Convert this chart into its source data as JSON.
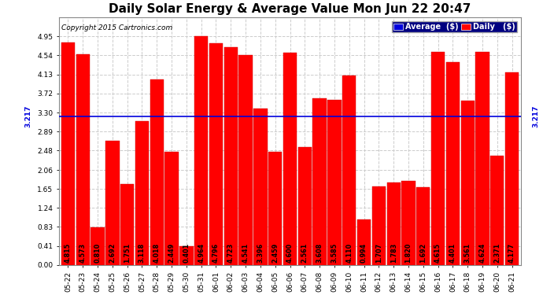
{
  "title": "Daily Solar Energy & Average Value Mon Jun 22 20:47",
  "copyright": "Copyright 2015 Cartronics.com",
  "categories": [
    "05-22",
    "05-23",
    "05-24",
    "05-25",
    "05-26",
    "05-27",
    "05-28",
    "05-29",
    "05-30",
    "05-31",
    "06-01",
    "06-02",
    "06-03",
    "06-04",
    "06-05",
    "06-06",
    "06-07",
    "06-08",
    "06-09",
    "06-10",
    "06-11",
    "06-12",
    "06-13",
    "06-14",
    "06-15",
    "06-16",
    "06-17",
    "06-18",
    "06-19",
    "06-20",
    "06-21"
  ],
  "values": [
    4.815,
    4.573,
    0.81,
    2.692,
    1.751,
    3.118,
    4.018,
    2.449,
    0.401,
    4.964,
    4.796,
    4.723,
    4.541,
    3.396,
    2.459,
    4.6,
    2.561,
    3.608,
    3.585,
    4.11,
    0.994,
    1.707,
    1.783,
    1.82,
    1.692,
    4.615,
    4.401,
    3.561,
    4.624,
    2.371,
    4.177
  ],
  "average": 3.217,
  "bar_color": "#ff0000",
  "avg_line_color": "#0000dd",
  "ylim": [
    0,
    5.37
  ],
  "yticks": [
    0.0,
    0.41,
    0.83,
    1.24,
    1.65,
    2.06,
    2.48,
    2.89,
    3.3,
    3.72,
    4.13,
    4.54,
    4.95
  ],
  "background_color": "#ffffff",
  "grid_color": "#cccccc",
  "bar_width": 0.92,
  "title_fontsize": 11,
  "tick_fontsize": 6.5,
  "value_fontsize": 5.8,
  "avg_label": "3.217",
  "legend_avg_label": "Average  ($)",
  "legend_daily_label": "Daily   ($)",
  "legend_bg": "#000080"
}
